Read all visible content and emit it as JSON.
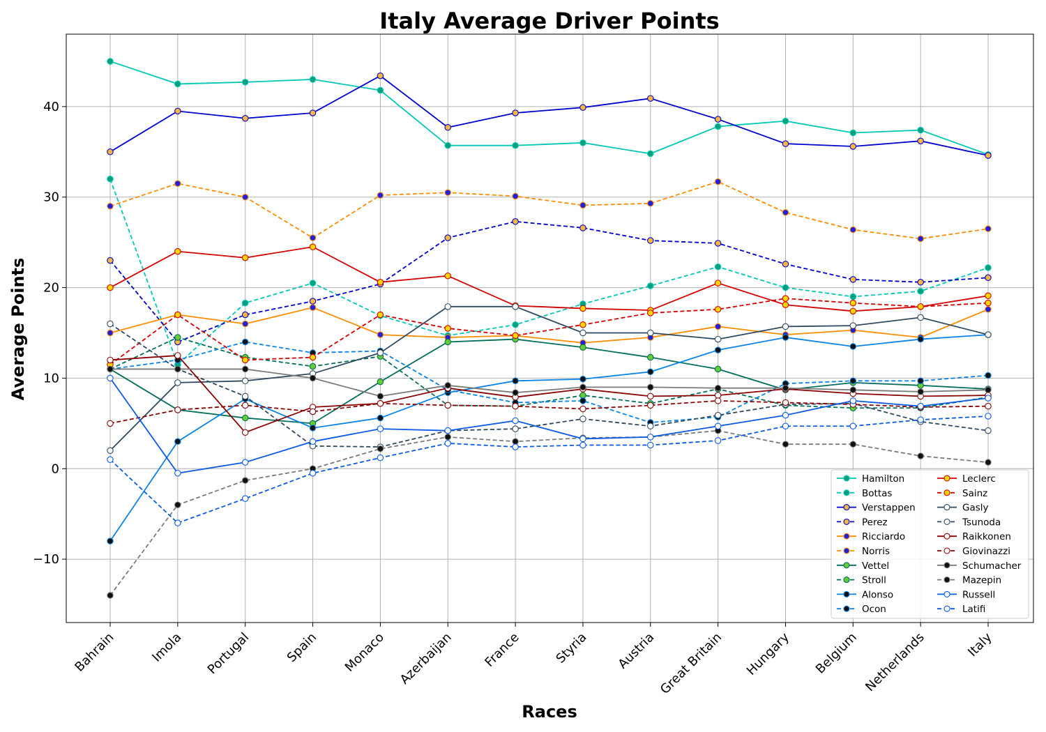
{
  "chart_data": {
    "type": "line",
    "title": "Italy Average Driver Points",
    "xlabel": "Races",
    "ylabel": "Average Points",
    "categories": [
      "Bahrain",
      "Imola",
      "Portugal",
      "Spain",
      "Monaco",
      "Azerbaijan",
      "France",
      "Styria",
      "Austria",
      "Great Britain",
      "Hungary",
      "Belgium",
      "Netherlands",
      "Italy"
    ],
    "ylim": [
      -17,
      48
    ],
    "yticks": [
      -10,
      0,
      10,
      20,
      30,
      40
    ],
    "ytick_labels": [
      "−10",
      "0",
      "10",
      "20",
      "30",
      "40"
    ],
    "grid": true,
    "legend_position": "lower-right",
    "legend_columns": 2,
    "series": [
      {
        "name": "Hamilton",
        "color": "#00c8b4",
        "marker_fill": "#00a07e",
        "dashed": false,
        "values": [
          45,
          42.5,
          42.7,
          43,
          41.8,
          35.7,
          35.7,
          36,
          34.8,
          37.8,
          38.4,
          37.1,
          37.4,
          34.7
        ]
      },
      {
        "name": "Bottas",
        "color": "#00c8b4",
        "marker_fill": "#00a07e",
        "dashed": true,
        "values": [
          32,
          11.5,
          18.3,
          20.5,
          16.9,
          14.7,
          15.9,
          18.2,
          20.2,
          22.3,
          20,
          19,
          19.6,
          22.2
        ]
      },
      {
        "name": "Verstappen",
        "color": "#0000d0",
        "marker_fill": "#f5b642",
        "dashed": false,
        "values": [
          35,
          39.5,
          38.7,
          39.3,
          43.4,
          37.7,
          39.3,
          39.9,
          40.9,
          38.6,
          35.9,
          35.6,
          36.2,
          34.6
        ]
      },
      {
        "name": "Perez",
        "color": "#0000d0",
        "marker_fill": "#f5b642",
        "dashed": true,
        "values": [
          23,
          14,
          17,
          18.5,
          20.4,
          25.5,
          27.3,
          26.6,
          25.2,
          24.9,
          22.6,
          20.9,
          20.6,
          21.1
        ]
      },
      {
        "name": "Ricciardo",
        "color": "#ff8c00",
        "marker_fill": "#2020e0",
        "dashed": false,
        "values": [
          15,
          17,
          16,
          17.8,
          14.8,
          14.5,
          14.7,
          13.9,
          14.5,
          15.7,
          14.8,
          15.3,
          14.5,
          17.6
        ]
      },
      {
        "name": "Norris",
        "color": "#ff8c00",
        "marker_fill": "#2020e0",
        "dashed": true,
        "values": [
          29,
          31.5,
          30,
          25.5,
          30.2,
          30.5,
          30.1,
          29.1,
          29.3,
          31.7,
          28.3,
          26.4,
          25.4,
          26.5
        ]
      },
      {
        "name": "Vettel",
        "color": "#006e5a",
        "marker_fill": "#66cc33",
        "dashed": false,
        "values": [
          11,
          6.5,
          5.6,
          5,
          9.6,
          14,
          14.3,
          13.4,
          12.3,
          11,
          8.7,
          9.5,
          9.2,
          8.8
        ]
      },
      {
        "name": "Stroll",
        "color": "#006e5a",
        "marker_fill": "#66cc33",
        "dashed": true,
        "values": [
          11,
          14.5,
          12.3,
          11.3,
          12.4,
          7,
          6.9,
          8.1,
          7.2,
          8.8,
          7,
          6.7,
          6.7,
          7.9
        ]
      },
      {
        "name": "Alonso",
        "color": "#0a84e8",
        "marker_fill": "#101010",
        "dashed": false,
        "values": [
          -8,
          3,
          7.7,
          4.5,
          5.6,
          8.4,
          9.7,
          9.9,
          10.7,
          13.1,
          14.5,
          13.5,
          14.3,
          14.8
        ]
      },
      {
        "name": "Ocon",
        "color": "#0a84e8",
        "marker_fill": "#101010",
        "dashed": true,
        "values": [
          11,
          12,
          14,
          12.8,
          13,
          8.7,
          7.3,
          7.5,
          5.1,
          5.7,
          9.4,
          9.7,
          9.7,
          10.3
        ]
      },
      {
        "name": "Leclerc",
        "color": "#d40000",
        "marker_fill": "#ffd700",
        "dashed": false,
        "values": [
          20,
          24,
          23.3,
          24.5,
          20.6,
          21.3,
          18,
          17.7,
          17.5,
          20.5,
          18.1,
          17.4,
          17.9,
          19.1
        ]
      },
      {
        "name": "Sainz",
        "color": "#d40000",
        "marker_fill": "#ffd700",
        "dashed": true,
        "values": [
          11.5,
          17,
          12,
          12.3,
          17,
          15.5,
          14.7,
          15.9,
          17.2,
          17.6,
          18.8,
          18.3,
          17.9,
          18.3
        ]
      },
      {
        "name": "Gasly",
        "color": "#2f4a60",
        "marker_fill": "#ffffff",
        "dashed": false,
        "values": [
          2,
          9.5,
          9.7,
          10.5,
          12.8,
          17.9,
          17.9,
          15,
          15,
          14.3,
          15.7,
          15.8,
          16.7,
          14.8
        ]
      },
      {
        "name": "Tsunoda",
        "color": "#2f4a60",
        "marker_fill": "#ffffff",
        "dashed": true,
        "values": [
          16,
          11,
          8,
          2.5,
          2.4,
          4.2,
          4.4,
          5.5,
          4.7,
          5.9,
          7.1,
          7.2,
          5.2,
          4.2
        ]
      },
      {
        "name": "Raikkonen",
        "color": "#8b0000",
        "marker_fill": "#ffffff",
        "dashed": false,
        "values": [
          12,
          12.5,
          4,
          6.8,
          7.2,
          8.9,
          7.9,
          8.8,
          8,
          8.1,
          8.8,
          8.3,
          8,
          8.1
        ]
      },
      {
        "name": "Giovinazzi",
        "color": "#8b0000",
        "marker_fill": "#ffffff",
        "dashed": true,
        "values": [
          5,
          6.5,
          7,
          6.3,
          7.2,
          7,
          6.9,
          6.6,
          7,
          7.5,
          7.3,
          7.1,
          6.8,
          6.9
        ]
      },
      {
        "name": "Schumacher",
        "color": "#7a7a7a",
        "marker_fill": "#101010",
        "dashed": false,
        "values": [
          11,
          11,
          11,
          10,
          8,
          9.2,
          8.4,
          9,
          9,
          8.9,
          8.9,
          8.7,
          8.5,
          8.7
        ]
      },
      {
        "name": "Mazepin",
        "color": "#7a7a7a",
        "marker_fill": "#101010",
        "dashed": true,
        "values": [
          -14,
          -4,
          -1.3,
          0,
          2.2,
          3.5,
          3,
          3.4,
          3.5,
          4.2,
          2.7,
          2.7,
          1.4,
          0.7
        ]
      },
      {
        "name": "Russell",
        "color": "#0a5ae8",
        "marker_fill": "#ffffff",
        "dashed": false,
        "values": [
          10,
          -0.5,
          0.7,
          3,
          4.4,
          4.2,
          5.3,
          3.3,
          3.5,
          4.7,
          5.9,
          7.5,
          6.9,
          7.8
        ]
      },
      {
        "name": "Latifi",
        "color": "#0a5ae8",
        "marker_fill": "#ffffff",
        "dashed": true,
        "values": [
          1,
          -6,
          -3.3,
          -0.5,
          1.2,
          2.8,
          2.4,
          2.6,
          2.6,
          3.1,
          4.7,
          4.7,
          5.4,
          5.8
        ]
      }
    ]
  }
}
